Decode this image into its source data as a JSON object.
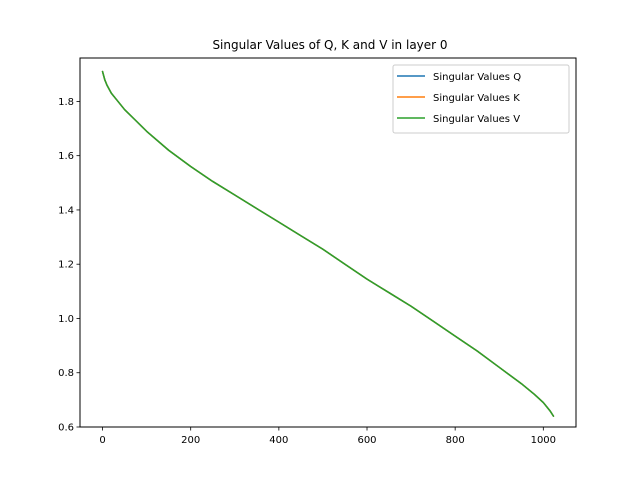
{
  "chart_data": {
    "type": "line",
    "title": "Singular Values of Q, K and V in layer 0",
    "xlabel": "",
    "ylabel": "",
    "xlim": [
      -51.15,
      1074.15
    ],
    "ylim": [
      0.6,
      1.96
    ],
    "xticks": [
      0,
      200,
      400,
      600,
      800,
      1000
    ],
    "xtick_labels": [
      "0",
      "200",
      "400",
      "600",
      "800",
      "1000"
    ],
    "yticks": [
      0.6,
      0.8,
      1.0,
      1.2,
      1.4,
      1.6,
      1.8
    ],
    "ytick_labels": [
      "0.6",
      "0.8",
      "1.0",
      "1.2",
      "1.4",
      "1.6",
      "1.8"
    ],
    "grid": false,
    "legend_position": "top-right",
    "series": [
      {
        "name": " Singular Values Q",
        "color": "#1f77b4",
        "x": [
          0,
          5,
          10,
          20,
          30,
          50,
          75,
          100,
          150,
          200,
          250,
          300,
          350,
          400,
          450,
          500,
          550,
          600,
          650,
          700,
          750,
          800,
          850,
          900,
          950,
          980,
          1000,
          1010,
          1015,
          1023
        ],
        "y": [
          1.91,
          1.88,
          1.86,
          1.83,
          1.81,
          1.77,
          1.73,
          1.69,
          1.62,
          1.56,
          1.505,
          1.455,
          1.405,
          1.355,
          1.305,
          1.255,
          1.2,
          1.145,
          1.095,
          1.045,
          0.99,
          0.935,
          0.88,
          0.82,
          0.76,
          0.72,
          0.69,
          0.67,
          0.66,
          0.64
        ]
      },
      {
        "name": " Singular Values K",
        "color": "#ff7f0e",
        "x": [
          0,
          5,
          10,
          20,
          30,
          50,
          75,
          100,
          150,
          200,
          250,
          300,
          350,
          400,
          450,
          500,
          550,
          600,
          650,
          700,
          750,
          800,
          850,
          900,
          950,
          980,
          1000,
          1010,
          1015,
          1023
        ],
        "y": [
          1.91,
          1.88,
          1.86,
          1.83,
          1.81,
          1.77,
          1.73,
          1.69,
          1.62,
          1.56,
          1.505,
          1.455,
          1.405,
          1.355,
          1.305,
          1.255,
          1.2,
          1.145,
          1.095,
          1.045,
          0.99,
          0.935,
          0.88,
          0.82,
          0.76,
          0.72,
          0.69,
          0.67,
          0.66,
          0.64
        ]
      },
      {
        "name": " Singular Values V",
        "color": "#2ca02c",
        "x": [
          0,
          5,
          10,
          20,
          30,
          50,
          75,
          100,
          150,
          200,
          250,
          300,
          350,
          400,
          450,
          500,
          550,
          600,
          650,
          700,
          750,
          800,
          850,
          900,
          950,
          980,
          1000,
          1010,
          1015,
          1023
        ],
        "y": [
          1.91,
          1.88,
          1.86,
          1.83,
          1.81,
          1.77,
          1.73,
          1.69,
          1.62,
          1.56,
          1.505,
          1.455,
          1.405,
          1.355,
          1.305,
          1.255,
          1.2,
          1.145,
          1.095,
          1.045,
          0.99,
          0.935,
          0.88,
          0.82,
          0.76,
          0.72,
          0.69,
          0.67,
          0.66,
          0.64
        ]
      }
    ]
  }
}
